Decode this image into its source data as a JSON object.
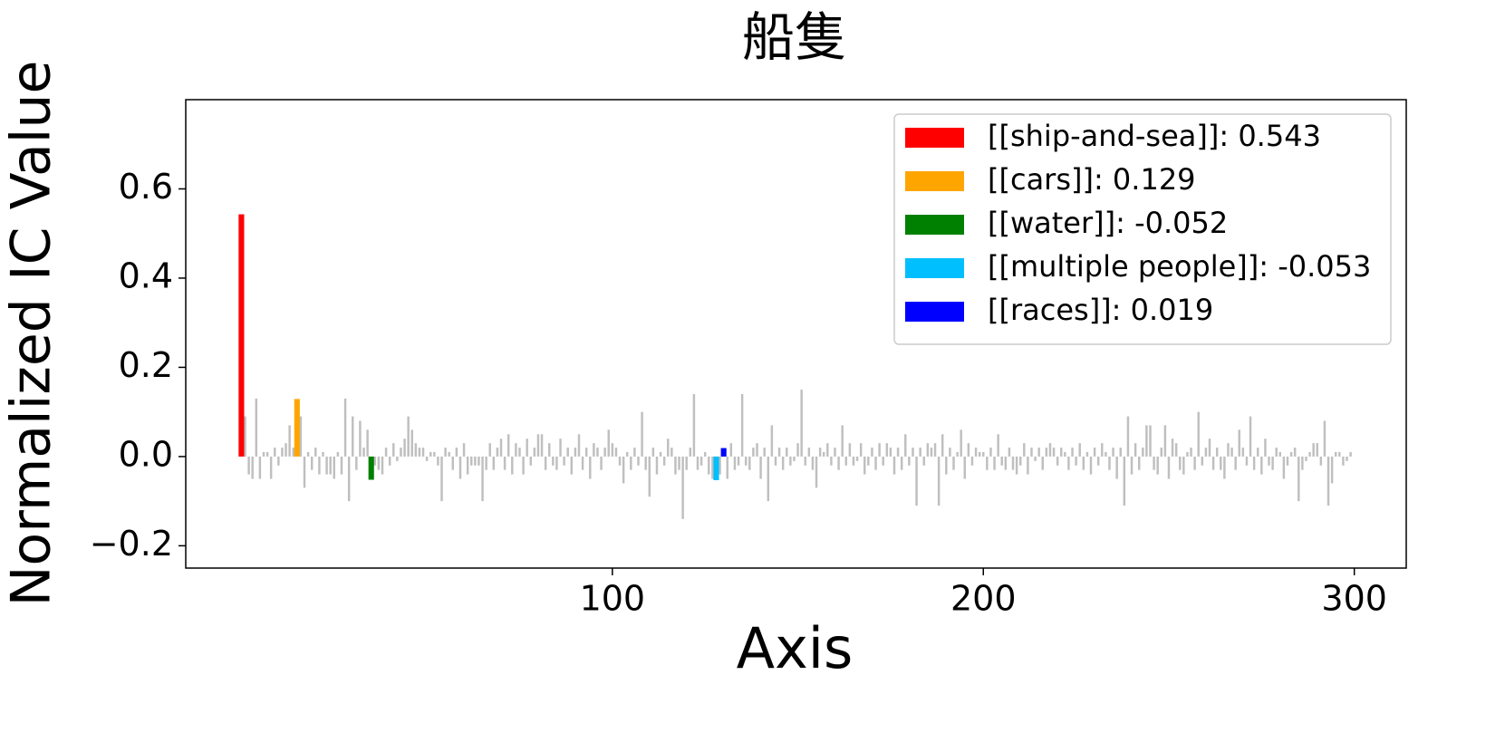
{
  "chart_data": {
    "type": "bar",
    "title": "船隻",
    "x_label": "Axis",
    "y_label": "Normalized IC Value",
    "xlim": [
      -15,
      314
    ],
    "ylim": [
      -0.25,
      0.8
    ],
    "xticks": [
      100,
      200,
      300
    ],
    "yticks": [
      {
        "value": -0.2,
        "label": "−0.2"
      },
      {
        "value": 0.0,
        "label": "0.0"
      },
      0.2,
      0.4,
      0.6
    ],
    "legend_position": "upper right",
    "series": [
      {
        "color": "#bfbfbf",
        "x": [
          0,
          1,
          2,
          3,
          4,
          5,
          6,
          7,
          8,
          9,
          10,
          11,
          12,
          13,
          14,
          15,
          16,
          17,
          18,
          19,
          20,
          21,
          22,
          23,
          24,
          25,
          26,
          27,
          28,
          29,
          30,
          31,
          32,
          33,
          34,
          35,
          36,
          37,
          38,
          39,
          40,
          41,
          42,
          43,
          44,
          45,
          46,
          47,
          48,
          49,
          50,
          51,
          52,
          53,
          54,
          55,
          56,
          57,
          58,
          59,
          60,
          61,
          62,
          63,
          64,
          65,
          66,
          67,
          68,
          69,
          70,
          71,
          72,
          73,
          74,
          75,
          76,
          77,
          78,
          79,
          80,
          81,
          82,
          83,
          84,
          85,
          86,
          87,
          88,
          89,
          90,
          91,
          92,
          93,
          94,
          95,
          96,
          97,
          98,
          99,
          100,
          101,
          102,
          103,
          104,
          105,
          106,
          107,
          108,
          109,
          110,
          111,
          112,
          113,
          114,
          115,
          116,
          117,
          118,
          119,
          120,
          121,
          122,
          123,
          124,
          125,
          126,
          127,
          128,
          129,
          130,
          131,
          132,
          133,
          134,
          135,
          136,
          137,
          138,
          139,
          140,
          141,
          142,
          143,
          144,
          145,
          146,
          147,
          148,
          149,
          150,
          151,
          152,
          153,
          154,
          155,
          156,
          157,
          158,
          159,
          160,
          161,
          162,
          163,
          164,
          165,
          166,
          167,
          168,
          169,
          170,
          171,
          172,
          173,
          174,
          175,
          176,
          177,
          178,
          179,
          180,
          181,
          182,
          183,
          184,
          185,
          186,
          187,
          188,
          189,
          190,
          191,
          192,
          193,
          194,
          195,
          196,
          197,
          198,
          199,
          200,
          201,
          202,
          203,
          204,
          205,
          206,
          207,
          208,
          209,
          210,
          211,
          212,
          213,
          214,
          215,
          216,
          217,
          218,
          219,
          220,
          221,
          222,
          223,
          224,
          225,
          226,
          227,
          228,
          229,
          230,
          231,
          232,
          233,
          234,
          235,
          236,
          237,
          238,
          239,
          240,
          241,
          242,
          243,
          244,
          245,
          246,
          247,
          248,
          249,
          250,
          251,
          252,
          253,
          254,
          255,
          256,
          257,
          258,
          259,
          260,
          261,
          262,
          263,
          264,
          265,
          266,
          267,
          268,
          269,
          270,
          271,
          272,
          273,
          274,
          275,
          276,
          277,
          278,
          279,
          280,
          281,
          282,
          283,
          284,
          285,
          286,
          287,
          288,
          289,
          290,
          291,
          292,
          293,
          294,
          295,
          296,
          297,
          298,
          299
        ],
        "values": [
          null,
          0.09,
          -0.04,
          -0.05,
          0.13,
          -0.05,
          0.01,
          0.01,
          -0.05,
          0.02,
          -0.02,
          0.02,
          0.03,
          0.07,
          0.02,
          null,
          0.09,
          -0.07,
          0.01,
          -0.03,
          0.02,
          -0.04,
          0.01,
          -0.04,
          -0.04,
          -0.05,
          0.01,
          -0.04,
          0.13,
          -0.1,
          0.09,
          -0.03,
          0.08,
          0.02,
          0.06,
          null,
          -0.02,
          -0.03,
          -0.04,
          0.02,
          -0.02,
          0.03,
          -0.01,
          0.02,
          0.04,
          0.09,
          0.06,
          0.03,
          0.02,
          0.02,
          -0.01,
          0.01,
          0.01,
          -0.02,
          -0.1,
          0.02,
          0.01,
          -0.03,
          0.02,
          -0.05,
          0.03,
          -0.04,
          -0.02,
          -0.02,
          -0.02,
          -0.1,
          -0.03,
          0.03,
          -0.03,
          0.02,
          0.04,
          -0.03,
          0.05,
          -0.04,
          0.03,
          0.02,
          -0.04,
          0.04,
          -0.02,
          0.02,
          0.05,
          0.05,
          -0.03,
          0.03,
          -0.02,
          -0.03,
          0.04,
          -0.02,
          0.02,
          -0.04,
          0.02,
          0.05,
          -0.03,
          0.02,
          -0.05,
          0.03,
          0.02,
          -0.03,
          0.02,
          0.06,
          0.03,
          0.02,
          -0.02,
          -0.06,
          0.01,
          -0.03,
          0.02,
          -0.02,
          0.1,
          -0.03,
          -0.09,
          0.02,
          -0.04,
          0.01,
          -0.02,
          0.04,
          0.02,
          -0.04,
          -0.03,
          -0.14,
          -0.03,
          0.02,
          0.14,
          -0.03,
          -0.02,
          0.01,
          -0.04,
          -0.05,
          null,
          -0.04,
          null,
          -0.05,
          0.03,
          -0.03,
          -0.02,
          0.14,
          -0.02,
          -0.03,
          0.02,
          0.03,
          -0.05,
          0.02,
          -0.1,
          0.07,
          -0.02,
          0.02,
          -0.03,
          0.02,
          -0.02,
          -0.01,
          0.03,
          0.15,
          -0.02,
          0.02,
          -0.03,
          -0.07,
          0.02,
          0.01,
          0.03,
          -0.02,
          0.02,
          -0.03,
          0.07,
          -0.02,
          0.03,
          -0.02,
          -0.01,
          0.03,
          -0.04,
          -0.02,
          0.02,
          -0.03,
          0.03,
          -0.02,
          0.03,
          0.02,
          -0.04,
          0.02,
          -0.03,
          0.05,
          -0.02,
          0.02,
          -0.11,
          0.02,
          -0.02,
          0.03,
          0.02,
          0.03,
          -0.11,
          0.05,
          -0.04,
          0.02,
          -0.03,
          0.01,
          0.06,
          -0.05,
          0.03,
          -0.02,
          0.02,
          0.01,
          0.01,
          -0.03,
          0.02,
          -0.03,
          0.05,
          -0.02,
          -0.03,
          0.02,
          -0.03,
          -0.04,
          -0.02,
          0.03,
          -0.04,
          0.02,
          -0.01,
          0.02,
          -0.03,
          0.02,
          0.03,
          0.02,
          -0.02,
          0.02,
          0.01,
          -0.03,
          0.02,
          -0.02,
          0.03,
          -0.03,
          0.01,
          -0.04,
          0.02,
          -0.02,
          0.03,
          0.01,
          -0.03,
          0.02,
          -0.05,
          0.02,
          -0.11,
          0.09,
          -0.04,
          0.03,
          -0.03,
          0.02,
          0.07,
          0.07,
          -0.03,
          -0.04,
          0.02,
          0.07,
          -0.05,
          0.04,
          0.03,
          -0.03,
          -0.04,
          0.01,
          0.02,
          -0.03,
          0.1,
          -0.02,
          0.02,
          0.04,
          -0.03,
          0.02,
          -0.03,
          -0.05,
          0.03,
          0.02,
          -0.03,
          0.06,
          0.02,
          -0.02,
          0.09,
          -0.03,
          0.02,
          -0.04,
          0.04,
          -0.02,
          -0.03,
          0.02,
          0.01,
          -0.05,
          -0.02,
          0.01,
          0.02,
          -0.1,
          -0.03,
          -0.01,
          0.01,
          0.03,
          0.03,
          -0.02,
          0.08,
          -0.11,
          -0.06,
          0.01,
          0.01,
          -0.02,
          -0.01,
          0.01
        ]
      },
      {
        "name": "[[ship-and-sea]]: 0.543",
        "color": "#ff0000",
        "x": [
          0
        ],
        "values": [
          0.543
        ]
      },
      {
        "name": "[[cars]]: 0.129",
        "color": "#ffa500",
        "x": [
          15
        ],
        "values": [
          0.129
        ]
      },
      {
        "name": "[[water]]: -0.052",
        "color": "#008000",
        "x": [
          35
        ],
        "values": [
          -0.052
        ]
      },
      {
        "name": "[[multiple people]]: -0.053",
        "color": "#00bfff",
        "x": [
          128
        ],
        "values": [
          -0.053
        ]
      },
      {
        "name": "[[races]]: 0.019",
        "color": "#0000ff",
        "x": [
          130
        ],
        "values": [
          0.019
        ]
      }
    ]
  }
}
